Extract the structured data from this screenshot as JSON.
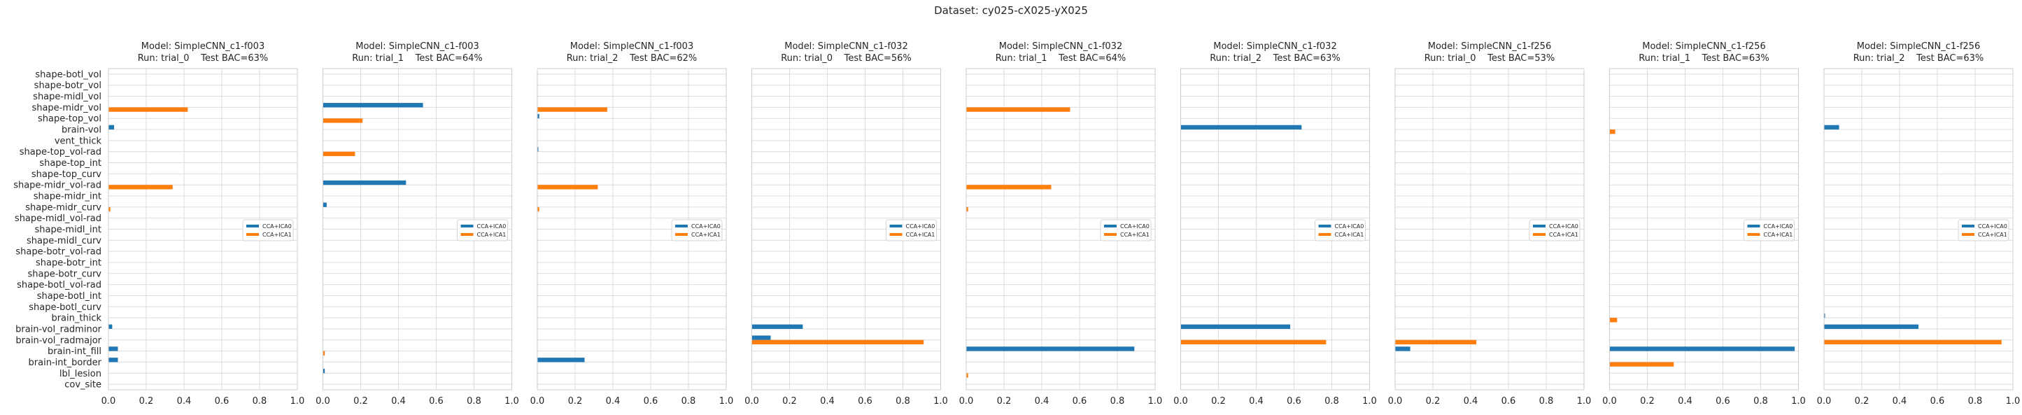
{
  "figure": {
    "suptitle": "Dataset: cy025-cX025-yX025"
  },
  "style": {
    "series_colors": [
      "#1f77b4",
      "#ff7f0e"
    ],
    "grid": true,
    "legend_placement": "center-right"
  },
  "chart_data": [
    {
      "type": "bar",
      "orientation": "horizontal",
      "title": "Model: SimpleCNN_c1-f003",
      "subtitle": "Run: trial_0    Test BAC=63%",
      "xlim": [
        0,
        1.0
      ],
      "xticks": [
        "0.0",
        "0.2",
        "0.4",
        "0.6",
        "0.8",
        "1.0"
      ],
      "categories": [
        "shape-botl_vol",
        "shape-botr_vol",
        "shape-midl_vol",
        "shape-midr_vol",
        "shape-top_vol",
        "brain-vol",
        "vent_thick",
        "shape-top_vol-rad",
        "shape-top_int",
        "shape-top_curv",
        "shape-midr_vol-rad",
        "shape-midr_int",
        "shape-midr_curv",
        "shape-midl_vol-rad",
        "shape-midl_int",
        "shape-midl_curv",
        "shape-botr_vol-rad",
        "shape-botr_int",
        "shape-botr_curv",
        "shape-botl_vol-rad",
        "shape-botl_int",
        "shape-botl_curv",
        "brain_thick",
        "brain-vol_radminor",
        "brain-vol_radmajor",
        "brain-int_fill",
        "brain-int_border",
        "lbl_lesion",
        "cov_site"
      ],
      "series": [
        {
          "name": "CCA+ICA0",
          "values": [
            0,
            0,
            0,
            0,
            0,
            0.03,
            0,
            0,
            0,
            0,
            0,
            0,
            0,
            0,
            0,
            0,
            0,
            0,
            0,
            0,
            0,
            0,
            0,
            0.02,
            0,
            0.05,
            0.05,
            0,
            0
          ]
        },
        {
          "name": "CCA+ICA1",
          "values": [
            0,
            0,
            0,
            0.42,
            0,
            0,
            0,
            0,
            0,
            0,
            0.34,
            0,
            0.01,
            0,
            0,
            0,
            0,
            0,
            0,
            0,
            0,
            0,
            0,
            0,
            0,
            0,
            0,
            0,
            0
          ]
        }
      ]
    },
    {
      "type": "bar",
      "orientation": "horizontal",
      "title": "Model: SimpleCNN_c1-f003",
      "subtitle": "Run: trial_1    Test BAC=64%",
      "xlim": [
        0,
        1.0
      ],
      "xticks": [
        "0.0",
        "0.2",
        "0.4",
        "0.6",
        "0.8",
        "1.0"
      ],
      "categories": [
        "shape-botl_vol",
        "shape-botr_vol",
        "shape-midl_vol",
        "shape-midr_vol",
        "shape-top_vol",
        "brain-vol",
        "vent_thick",
        "shape-top_vol-rad",
        "shape-top_int",
        "shape-top_curv",
        "shape-midr_vol-rad",
        "shape-midr_int",
        "shape-midr_curv",
        "shape-midl_vol-rad",
        "shape-midl_int",
        "shape-midl_curv",
        "shape-botr_vol-rad",
        "shape-botr_int",
        "shape-botr_curv",
        "shape-botl_vol-rad",
        "shape-botl_int",
        "shape-botl_curv",
        "brain_thick",
        "brain-vol_radminor",
        "brain-vol_radmajor",
        "brain-int_fill",
        "brain-int_border",
        "lbl_lesion",
        "cov_site"
      ],
      "series": [
        {
          "name": "CCA+ICA0",
          "values": [
            0,
            0,
            0,
            0.53,
            0,
            0,
            0,
            0,
            0,
            0,
            0.44,
            0,
            0.02,
            0,
            0,
            0,
            0,
            0,
            0,
            0,
            0,
            0,
            0,
            0,
            0,
            0,
            0,
            0.01,
            0
          ]
        },
        {
          "name": "CCA+ICA1",
          "values": [
            0,
            0,
            0,
            0,
            0.21,
            0,
            0,
            0.17,
            0,
            0,
            0,
            0,
            0,
            0,
            0,
            0,
            0,
            0,
            0,
            0,
            0,
            0,
            0,
            0,
            0,
            0.01,
            0,
            0,
            0
          ]
        }
      ]
    },
    {
      "type": "bar",
      "orientation": "horizontal",
      "title": "Model: SimpleCNN_c1-f003",
      "subtitle": "Run: trial_2    Test BAC=62%",
      "xlim": [
        0,
        1.0
      ],
      "xticks": [
        "0.0",
        "0.2",
        "0.4",
        "0.6",
        "0.8",
        "1.0"
      ],
      "categories": [
        "shape-botl_vol",
        "shape-botr_vol",
        "shape-midl_vol",
        "shape-midr_vol",
        "shape-top_vol",
        "brain-vol",
        "vent_thick",
        "shape-top_vol-rad",
        "shape-top_int",
        "shape-top_curv",
        "shape-midr_vol-rad",
        "shape-midr_int",
        "shape-midr_curv",
        "shape-midl_vol-rad",
        "shape-midl_int",
        "shape-midl_curv",
        "shape-botr_vol-rad",
        "shape-botr_int",
        "shape-botr_curv",
        "shape-botl_vol-rad",
        "shape-botl_int",
        "shape-botl_curv",
        "brain_thick",
        "brain-vol_radminor",
        "brain-vol_radmajor",
        "brain-int_fill",
        "brain-int_border",
        "lbl_lesion",
        "cov_site"
      ],
      "series": [
        {
          "name": "CCA+ICA0",
          "values": [
            0,
            0,
            0,
            0,
            0.01,
            0,
            0,
            0.005,
            0,
            0,
            0,
            0,
            0,
            0,
            0,
            0,
            0,
            0,
            0,
            0,
            0,
            0,
            0,
            0,
            0,
            0,
            0.25,
            0,
            0
          ]
        },
        {
          "name": "CCA+ICA1",
          "values": [
            0,
            0,
            0,
            0.37,
            0,
            0,
            0,
            0,
            0,
            0,
            0.32,
            0,
            0.01,
            0,
            0,
            0,
            0,
            0,
            0,
            0,
            0,
            0,
            0,
            0,
            0,
            0,
            0,
            0,
            0
          ]
        }
      ]
    },
    {
      "type": "bar",
      "orientation": "horizontal",
      "title": "Model: SimpleCNN_c1-f032",
      "subtitle": "Run: trial_0    Test BAC=56%",
      "xlim": [
        0,
        1.0
      ],
      "xticks": [
        "0.0",
        "0.2",
        "0.4",
        "0.6",
        "0.8",
        "1.0"
      ],
      "categories": [
        "shape-botl_vol",
        "shape-botr_vol",
        "shape-midl_vol",
        "shape-midr_vol",
        "shape-top_vol",
        "brain-vol",
        "vent_thick",
        "shape-top_vol-rad",
        "shape-top_int",
        "shape-top_curv",
        "shape-midr_vol-rad",
        "shape-midr_int",
        "shape-midr_curv",
        "shape-midl_vol-rad",
        "shape-midl_int",
        "shape-midl_curv",
        "shape-botr_vol-rad",
        "shape-botr_int",
        "shape-botr_curv",
        "shape-botl_vol-rad",
        "shape-botl_int",
        "shape-botl_curv",
        "brain_thick",
        "brain-vol_radminor",
        "brain-vol_radmajor",
        "brain-int_fill",
        "brain-int_border",
        "lbl_lesion",
        "cov_site"
      ],
      "series": [
        {
          "name": "CCA+ICA0",
          "values": [
            0,
            0,
            0,
            0,
            0,
            0,
            0,
            0,
            0,
            0,
            0,
            0,
            0,
            0,
            0,
            0,
            0,
            0,
            0,
            0,
            0,
            0,
            0,
            0.27,
            0.1,
            0,
            0,
            0,
            0
          ]
        },
        {
          "name": "CCA+ICA1",
          "values": [
            0,
            0,
            0,
            0,
            0,
            0,
            0,
            0,
            0,
            0,
            0,
            0,
            0,
            0,
            0,
            0,
            0,
            0,
            0,
            0,
            0,
            0,
            0,
            0,
            0.91,
            0,
            0,
            0,
            0
          ]
        }
      ]
    },
    {
      "type": "bar",
      "orientation": "horizontal",
      "title": "Model: SimpleCNN_c1-f032",
      "subtitle": "Run: trial_1    Test BAC=64%",
      "xlim": [
        0,
        1.0
      ],
      "xticks": [
        "0.0",
        "0.2",
        "0.4",
        "0.6",
        "0.8",
        "1.0"
      ],
      "categories": [
        "shape-botl_vol",
        "shape-botr_vol",
        "shape-midl_vol",
        "shape-midr_vol",
        "shape-top_vol",
        "brain-vol",
        "vent_thick",
        "shape-top_vol-rad",
        "shape-top_int",
        "shape-top_curv",
        "shape-midr_vol-rad",
        "shape-midr_int",
        "shape-midr_curv",
        "shape-midl_vol-rad",
        "shape-midl_int",
        "shape-midl_curv",
        "shape-botr_vol-rad",
        "shape-botr_int",
        "shape-botr_curv",
        "shape-botl_vol-rad",
        "shape-botl_int",
        "shape-botl_curv",
        "brain_thick",
        "brain-vol_radminor",
        "brain-vol_radmajor",
        "brain-int_fill",
        "brain-int_border",
        "lbl_lesion",
        "cov_site"
      ],
      "series": [
        {
          "name": "CCA+ICA0",
          "values": [
            0,
            0,
            0,
            0,
            0,
            0,
            0,
            0,
            0,
            0,
            0,
            0,
            0,
            0,
            0,
            0,
            0,
            0,
            0,
            0,
            0,
            0,
            0,
            0,
            0,
            0.89,
            0,
            0,
            0
          ]
        },
        {
          "name": "CCA+ICA1",
          "values": [
            0,
            0,
            0,
            0.55,
            0,
            0,
            0,
            0,
            0,
            0,
            0.45,
            0,
            0.01,
            0,
            0,
            0,
            0,
            0,
            0,
            0,
            0,
            0,
            0,
            0,
            0,
            0,
            0,
            0.01,
            0
          ]
        }
      ]
    },
    {
      "type": "bar",
      "orientation": "horizontal",
      "title": "Model: SimpleCNN_c1-f032",
      "subtitle": "Run: trial_2    Test BAC=63%",
      "xlim": [
        0,
        1.0
      ],
      "xticks": [
        "0.0",
        "0.2",
        "0.4",
        "0.6",
        "0.8",
        "1.0"
      ],
      "categories": [
        "shape-botl_vol",
        "shape-botr_vol",
        "shape-midl_vol",
        "shape-midr_vol",
        "shape-top_vol",
        "brain-vol",
        "vent_thick",
        "shape-top_vol-rad",
        "shape-top_int",
        "shape-top_curv",
        "shape-midr_vol-rad",
        "shape-midr_int",
        "shape-midr_curv",
        "shape-midl_vol-rad",
        "shape-midl_int",
        "shape-midl_curv",
        "shape-botr_vol-rad",
        "shape-botr_int",
        "shape-botr_curv",
        "shape-botl_vol-rad",
        "shape-botl_int",
        "shape-botl_curv",
        "brain_thick",
        "brain-vol_radminor",
        "brain-vol_radmajor",
        "brain-int_fill",
        "brain-int_border",
        "lbl_lesion",
        "cov_site"
      ],
      "series": [
        {
          "name": "CCA+ICA0",
          "values": [
            0,
            0,
            0,
            0,
            0,
            0.64,
            0,
            0,
            0,
            0,
            0,
            0,
            0,
            0,
            0,
            0,
            0,
            0,
            0,
            0,
            0,
            0,
            0,
            0.58,
            0,
            0,
            0,
            0,
            0
          ]
        },
        {
          "name": "CCA+ICA1",
          "values": [
            0,
            0,
            0,
            0,
            0,
            0,
            0,
            0,
            0,
            0,
            0,
            0,
            0,
            0,
            0,
            0,
            0,
            0,
            0,
            0,
            0,
            0,
            0,
            0,
            0.77,
            0,
            0,
            0,
            0
          ]
        }
      ]
    },
    {
      "type": "bar",
      "orientation": "horizontal",
      "title": "Model: SimpleCNN_c1-f256",
      "subtitle": "Run: trial_0    Test BAC=53%",
      "xlim": [
        0,
        1.0
      ],
      "xticks": [
        "0.0",
        "0.2",
        "0.4",
        "0.6",
        "0.8",
        "1.0"
      ],
      "categories": [
        "shape-botl_vol",
        "shape-botr_vol",
        "shape-midl_vol",
        "shape-midr_vol",
        "shape-top_vol",
        "brain-vol",
        "vent_thick",
        "shape-top_vol-rad",
        "shape-top_int",
        "shape-top_curv",
        "shape-midr_vol-rad",
        "shape-midr_int",
        "shape-midr_curv",
        "shape-midl_vol-rad",
        "shape-midl_int",
        "shape-midl_curv",
        "shape-botr_vol-rad",
        "shape-botr_int",
        "shape-botr_curv",
        "shape-botl_vol-rad",
        "shape-botl_int",
        "shape-botl_curv",
        "brain_thick",
        "brain-vol_radminor",
        "brain-vol_radmajor",
        "brain-int_fill",
        "brain-int_border",
        "lbl_lesion",
        "cov_site"
      ],
      "series": [
        {
          "name": "CCA+ICA0",
          "values": [
            0,
            0,
            0,
            0,
            0,
            0,
            0,
            0,
            0,
            0,
            0,
            0,
            0,
            0,
            0,
            0,
            0,
            0,
            0,
            0,
            0,
            0,
            0,
            0,
            0,
            0.08,
            0,
            0,
            0
          ]
        },
        {
          "name": "CCA+ICA1",
          "values": [
            0,
            0,
            0,
            0,
            0,
            0,
            0,
            0,
            0,
            0,
            0,
            0,
            0,
            0,
            0,
            0,
            0,
            0,
            0,
            0,
            0,
            0,
            0,
            0,
            0.43,
            0,
            0,
            0,
            0
          ]
        }
      ]
    },
    {
      "type": "bar",
      "orientation": "horizontal",
      "title": "Model: SimpleCNN_c1-f256",
      "subtitle": "Run: trial_1    Test BAC=63%",
      "xlim": [
        0,
        1.0
      ],
      "xticks": [
        "0.0",
        "0.2",
        "0.4",
        "0.6",
        "0.8",
        "1.0"
      ],
      "categories": [
        "shape-botl_vol",
        "shape-botr_vol",
        "shape-midl_vol",
        "shape-midr_vol",
        "shape-top_vol",
        "brain-vol",
        "vent_thick",
        "shape-top_vol-rad",
        "shape-top_int",
        "shape-top_curv",
        "shape-midr_vol-rad",
        "shape-midr_int",
        "shape-midr_curv",
        "shape-midl_vol-rad",
        "shape-midl_int",
        "shape-midl_curv",
        "shape-botr_vol-rad",
        "shape-botr_int",
        "shape-botr_curv",
        "shape-botl_vol-rad",
        "shape-botl_int",
        "shape-botl_curv",
        "brain_thick",
        "brain-vol_radminor",
        "brain-vol_radmajor",
        "brain-int_fill",
        "brain-int_border",
        "lbl_lesion",
        "cov_site"
      ],
      "series": [
        {
          "name": "CCA+ICA0",
          "values": [
            0,
            0,
            0,
            0,
            0,
            0,
            0,
            0,
            0,
            0,
            0,
            0,
            0,
            0,
            0,
            0,
            0,
            0,
            0,
            0,
            0,
            0,
            0,
            0,
            0,
            0.98,
            0,
            0,
            0
          ]
        },
        {
          "name": "CCA+ICA1",
          "values": [
            0,
            0,
            0,
            0,
            0,
            0.03,
            0,
            0,
            0,
            0,
            0,
            0,
            0,
            0,
            0,
            0,
            0,
            0,
            0,
            0,
            0,
            0,
            0.04,
            0,
            0,
            0,
            0.34,
            0,
            0
          ]
        }
      ]
    },
    {
      "type": "bar",
      "orientation": "horizontal",
      "title": "Model: SimpleCNN_c1-f256",
      "subtitle": "Run: trial_2    Test BAC=63%",
      "xlim": [
        0,
        1.0
      ],
      "xticks": [
        "0.0",
        "0.2",
        "0.4",
        "0.6",
        "0.8",
        "1.0"
      ],
      "categories": [
        "shape-botl_vol",
        "shape-botr_vol",
        "shape-midl_vol",
        "shape-midr_vol",
        "shape-top_vol",
        "brain-vol",
        "vent_thick",
        "shape-top_vol-rad",
        "shape-top_int",
        "shape-top_curv",
        "shape-midr_vol-rad",
        "shape-midr_int",
        "shape-midr_curv",
        "shape-midl_vol-rad",
        "shape-midl_int",
        "shape-midl_curv",
        "shape-botr_vol-rad",
        "shape-botr_int",
        "shape-botr_curv",
        "shape-botl_vol-rad",
        "shape-botl_int",
        "shape-botl_curv",
        "brain_thick",
        "brain-vol_radminor",
        "brain-vol_radmajor",
        "brain-int_fill",
        "brain-int_border",
        "lbl_lesion",
        "cov_site"
      ],
      "series": [
        {
          "name": "CCA+ICA0",
          "values": [
            0,
            0,
            0,
            0,
            0,
            0.08,
            0,
            0,
            0,
            0,
            0,
            0,
            0,
            0,
            0,
            0,
            0,
            0,
            0,
            0,
            0,
            0,
            0.005,
            0.5,
            0,
            0,
            0,
            0,
            0
          ]
        },
        {
          "name": "CCA+ICA1",
          "values": [
            0,
            0,
            0,
            0,
            0,
            0,
            0,
            0,
            0,
            0,
            0,
            0,
            0,
            0,
            0,
            0,
            0,
            0,
            0,
            0,
            0,
            0,
            0,
            0,
            0.94,
            0,
            0,
            0,
            0
          ]
        }
      ]
    }
  ]
}
